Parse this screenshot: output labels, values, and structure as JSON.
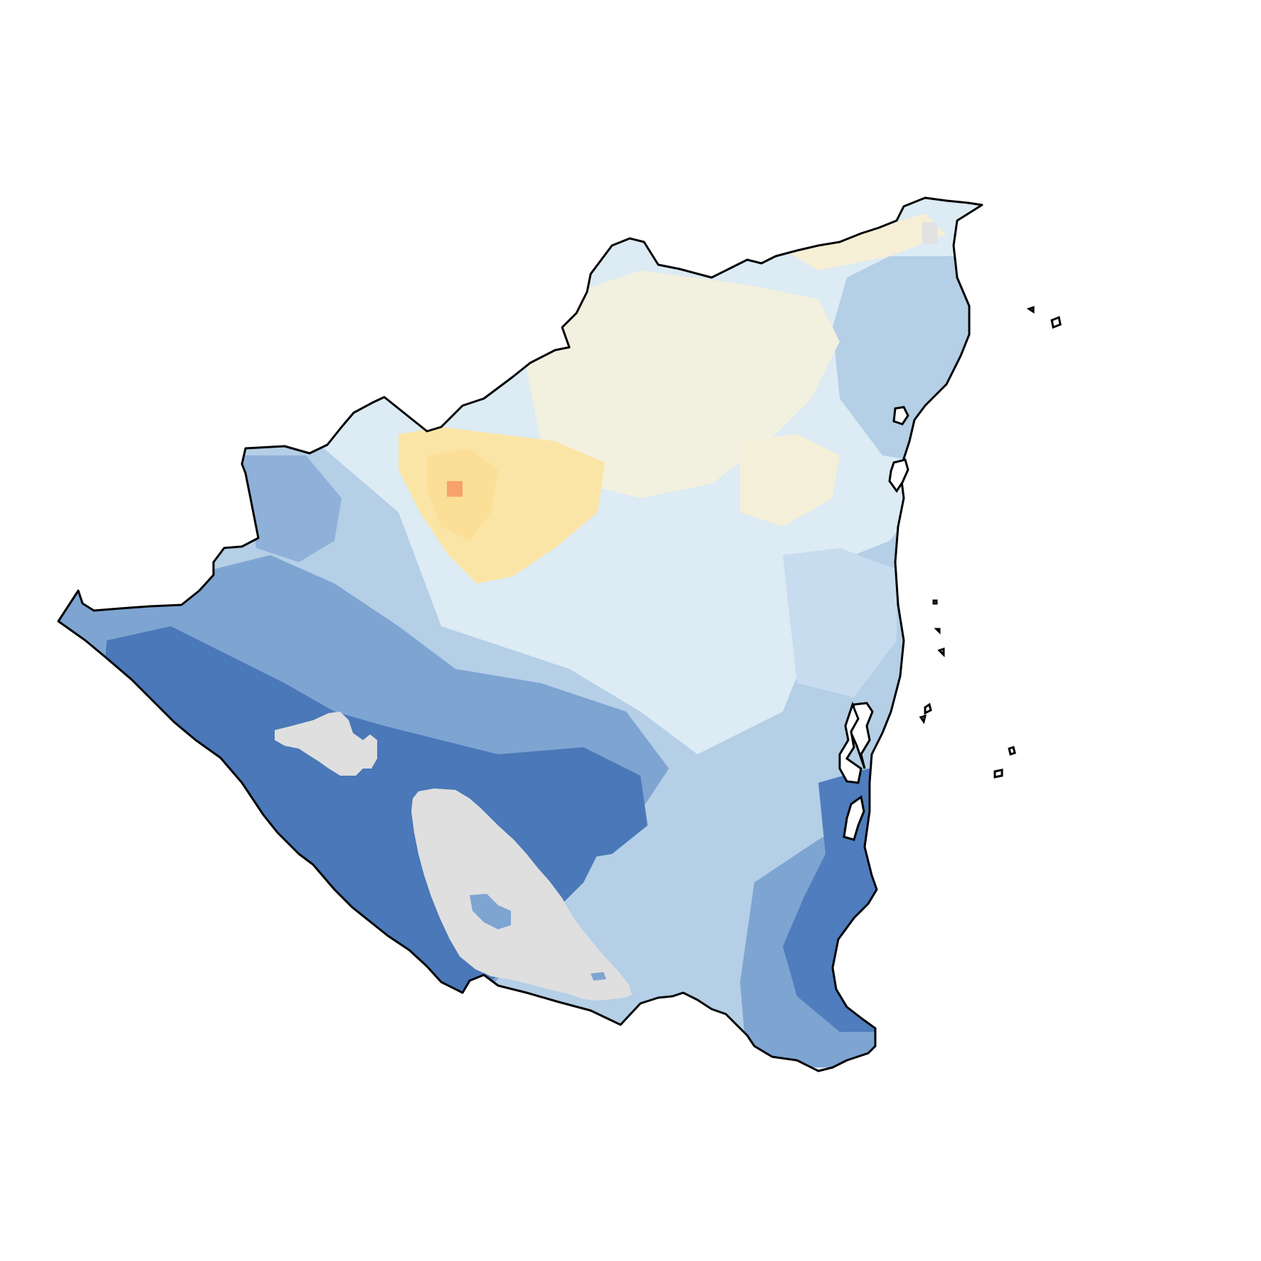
{
  "map": {
    "type": "raster-choropleth",
    "region": "Nicaragua",
    "has_legend": false,
    "has_title": false,
    "colors": {
      "background": "#ffffff",
      "outline": "#000000",
      "deep_blue": "#4a78b8",
      "mid_blue": "#7ea4d2",
      "light_blue": "#b4cfe6",
      "pale_blue": "#dcebf4",
      "pale_yellow": "#fbefcc",
      "yellow": "#fbdf96",
      "orange": "#f7a26c",
      "water_nodata": "#dfdfdf"
    },
    "features": {
      "country": "country-outline",
      "lakes": [
        "lake-managua",
        "lake-nicaragua"
      ],
      "islands": [
        "corn-islands",
        "miskito-cays",
        "offshore-islets"
      ]
    }
  }
}
